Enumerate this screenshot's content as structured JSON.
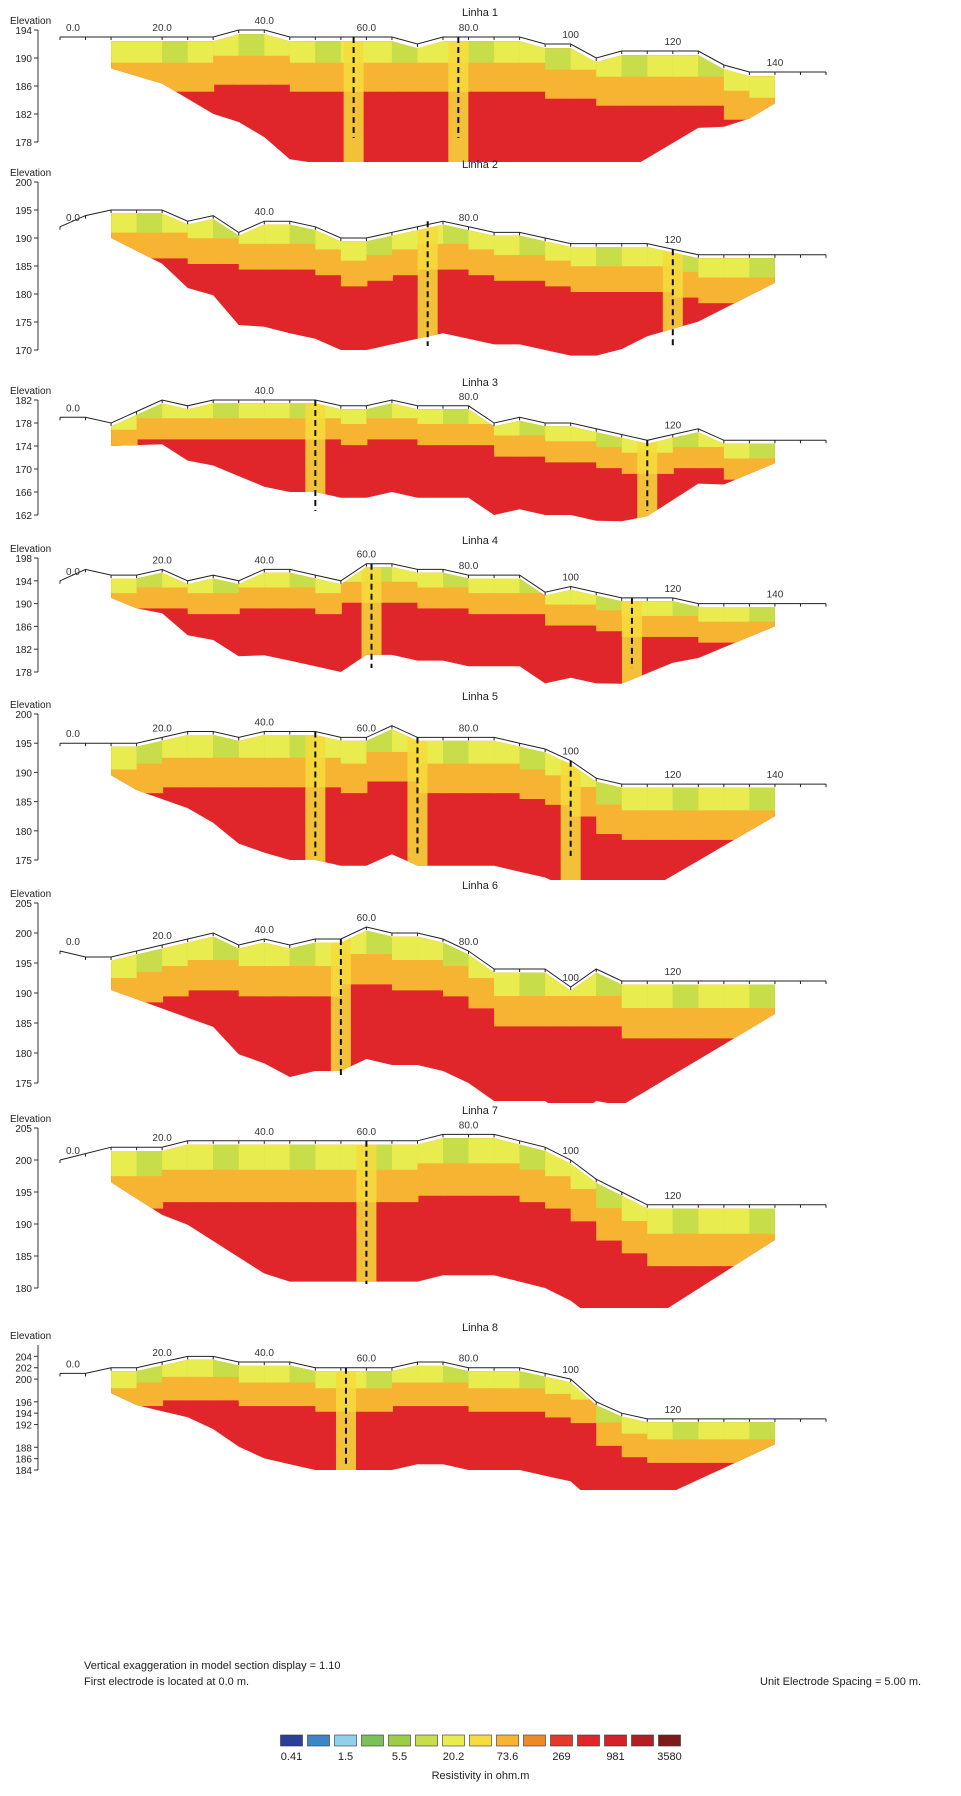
{
  "colors": {
    "scale": [
      "#2b3f9a",
      "#3d86c6",
      "#8fd0ea",
      "#7cc05a",
      "#9dcc49",
      "#c7de4a",
      "#e8ec4e",
      "#f6dc3c",
      "#f6b432",
      "#ee8a26",
      "#e4392a",
      "#e0262a",
      "#d8202a",
      "#b31e24",
      "#7e1a1c"
    ],
    "line": "#222222",
    "divider": "#111111"
  },
  "legend": {
    "labels": [
      "0.41",
      "1.5",
      "5.5",
      "20.2",
      "73.6",
      "269",
      "981",
      "3580"
    ],
    "title": "Resistivity in ohm.m"
  },
  "notes": {
    "exaggeration": "Vertical exaggeration in model section display = 1.10",
    "first_electrode": "First electrode is located at 0.0  m.",
    "spacing": "Unit Electrode Spacing = 5.00 m."
  },
  "chart_data": [
    {
      "type": "heatmap",
      "title": "Linha 1",
      "ylabel": "Elevation",
      "ylim": [
        178,
        194
      ],
      "yticks": [
        194,
        190,
        186,
        182,
        178
      ],
      "x_tick_labels": [
        "0.0",
        "20.0",
        "40.0",
        "60.0",
        "80.0",
        "100",
        "120",
        "140"
      ],
      "x_tick_values": [
        0,
        20,
        40,
        60,
        80,
        100,
        120,
        140
      ],
      "x_range": [
        0,
        150
      ],
      "dashed_markers_x": [
        57.5,
        78
      ],
      "surface_x": [
        0,
        5,
        10,
        20,
        25,
        30,
        35,
        40,
        45,
        50,
        55,
        60,
        65,
        70,
        75,
        80,
        85,
        90,
        95,
        100,
        105,
        110,
        115,
        120,
        125,
        130,
        135,
        140,
        145,
        150
      ],
      "surface_elevation": [
        193,
        193,
        193,
        193,
        193,
        193,
        194,
        194,
        193,
        193,
        193,
        193,
        193,
        192,
        193,
        193,
        193,
        193,
        192,
        192,
        190,
        191,
        191,
        191,
        191,
        189,
        188,
        188,
        188,
        188
      ]
    },
    {
      "type": "heatmap",
      "title": "Linha 2",
      "ylabel": "Elevation",
      "ylim": [
        170,
        200
      ],
      "yticks": [
        200,
        195,
        190,
        185,
        180,
        175,
        170
      ],
      "x_tick_labels": [
        "0.0",
        "40.0",
        "80.0",
        "120"
      ],
      "x_tick_values": [
        0,
        40,
        80,
        120
      ],
      "x_range": [
        0,
        150
      ],
      "dashed_markers_x": [
        72,
        120
      ],
      "surface_x": [
        0,
        5,
        10,
        15,
        20,
        25,
        30,
        35,
        40,
        45,
        50,
        55,
        60,
        65,
        70,
        75,
        80,
        85,
        90,
        95,
        100,
        105,
        110,
        115,
        120,
        125,
        130,
        135,
        140,
        145,
        150
      ],
      "surface_elevation": [
        192,
        194,
        195,
        195,
        195,
        193,
        194,
        191,
        193,
        193,
        192,
        190,
        190,
        191,
        192,
        193,
        192,
        191,
        191,
        190,
        189,
        189,
        189,
        189,
        188,
        187,
        187,
        187,
        187,
        187,
        187
      ]
    },
    {
      "type": "heatmap",
      "title": "Linha 3",
      "ylabel": "Elevation",
      "ylim": [
        162,
        182
      ],
      "yticks": [
        182,
        178,
        174,
        170,
        166,
        162
      ],
      "x_tick_labels": [
        "0.0",
        "40.0",
        "80.0",
        "120"
      ],
      "x_tick_values": [
        0,
        40,
        80,
        120
      ],
      "x_range": [
        0,
        150
      ],
      "dashed_markers_x": [
        50,
        115
      ],
      "surface_x": [
        0,
        5,
        10,
        15,
        20,
        25,
        30,
        35,
        40,
        45,
        50,
        55,
        60,
        65,
        70,
        75,
        80,
        85,
        90,
        95,
        100,
        105,
        110,
        115,
        120,
        125,
        130,
        135,
        140,
        145,
        150
      ],
      "surface_elevation": [
        179,
        179,
        178,
        180,
        182,
        181,
        182,
        182,
        182,
        182,
        182,
        181,
        181,
        182,
        181,
        181,
        181,
        178,
        179,
        178,
        178,
        177,
        176,
        175,
        176,
        177,
        175,
        175,
        175,
        175,
        175
      ]
    },
    {
      "type": "heatmap",
      "title": "Linha 4",
      "ylabel": "Elevation",
      "ylim": [
        178,
        198
      ],
      "yticks": [
        198,
        194,
        190,
        186,
        182,
        178
      ],
      "x_tick_labels": [
        "0.0",
        "20.0",
        "40.0",
        "60.0",
        "80.0",
        "100",
        "120",
        "140"
      ],
      "x_tick_values": [
        0,
        20,
        40,
        60,
        80,
        100,
        120,
        140
      ],
      "x_range": [
        0,
        150
      ],
      "dashed_markers_x": [
        61,
        112
      ],
      "surface_x": [
        0,
        5,
        10,
        15,
        20,
        25,
        30,
        35,
        40,
        45,
        50,
        55,
        60,
        65,
        70,
        75,
        80,
        85,
        90,
        95,
        100,
        105,
        110,
        115,
        120,
        125,
        130,
        135,
        140,
        145,
        150
      ],
      "surface_elevation": [
        194,
        196,
        195,
        195,
        196,
        194,
        195,
        194,
        196,
        196,
        195,
        194,
        197,
        197,
        196,
        196,
        195,
        195,
        195,
        192,
        193,
        192,
        191,
        191,
        191,
        190,
        190,
        190,
        190,
        190,
        190
      ]
    },
    {
      "type": "heatmap",
      "title": "Linha 5",
      "ylabel": "Elevation",
      "ylim": [
        175,
        200
      ],
      "yticks": [
        200,
        195,
        190,
        185,
        180,
        175
      ],
      "x_tick_labels": [
        "0.0",
        "20.0",
        "40.0",
        "60.0",
        "80.0",
        "100",
        "120",
        "140"
      ],
      "x_tick_values": [
        0,
        20,
        40,
        60,
        80,
        100,
        120,
        140
      ],
      "x_range": [
        0,
        150
      ],
      "dashed_markers_x": [
        50,
        70,
        100
      ],
      "surface_x": [
        0,
        5,
        10,
        15,
        20,
        25,
        30,
        35,
        40,
        45,
        50,
        55,
        60,
        65,
        70,
        75,
        80,
        85,
        90,
        95,
        100,
        105,
        110,
        115,
        120,
        125,
        130,
        135,
        140,
        145,
        150
      ],
      "surface_elevation": [
        195,
        195,
        195,
        195,
        196,
        197,
        197,
        196,
        197,
        197,
        197,
        196,
        196,
        198,
        196,
        196,
        196,
        196,
        195,
        194,
        192,
        189,
        188,
        188,
        188,
        188,
        188,
        188,
        188,
        188,
        188
      ]
    },
    {
      "type": "heatmap",
      "title": "Linha 6",
      "ylabel": "Elevation",
      "ylim": [
        175,
        205
      ],
      "yticks": [
        205,
        200,
        195,
        190,
        185,
        180,
        175
      ],
      "x_tick_labels": [
        "0.0",
        "20.0",
        "40.0",
        "60.0",
        "80.0",
        "100",
        "120"
      ],
      "x_tick_values": [
        0,
        20,
        40,
        60,
        80,
        100,
        120
      ],
      "x_range": [
        0,
        150
      ],
      "dashed_markers_x": [
        55
      ],
      "surface_x": [
        0,
        5,
        10,
        15,
        20,
        25,
        30,
        35,
        40,
        45,
        50,
        55,
        60,
        65,
        70,
        75,
        80,
        85,
        90,
        95,
        100,
        105,
        110,
        115,
        120,
        125,
        130,
        135,
        140,
        145,
        150
      ],
      "surface_elevation": [
        197,
        196,
        196,
        197,
        198,
        199,
        200,
        198,
        199,
        198,
        199,
        199,
        201,
        200,
        200,
        199,
        197,
        194,
        194,
        194,
        191,
        194,
        192,
        192,
        192,
        192,
        192,
        192,
        192,
        192,
        192
      ]
    },
    {
      "type": "heatmap",
      "title": "Linha 7",
      "ylabel": "Elevation",
      "ylim": [
        180,
        205
      ],
      "yticks": [
        205,
        200,
        195,
        190,
        185,
        180
      ],
      "x_tick_labels": [
        "0.0",
        "20.0",
        "40.0",
        "60.0",
        "80.0",
        "100",
        "120"
      ],
      "x_tick_values": [
        0,
        20,
        40,
        60,
        80,
        100,
        120
      ],
      "x_range": [
        0,
        150
      ],
      "dashed_markers_x": [
        60
      ],
      "surface_x": [
        0,
        5,
        10,
        15,
        20,
        25,
        30,
        35,
        40,
        45,
        50,
        55,
        60,
        65,
        70,
        75,
        80,
        85,
        90,
        95,
        100,
        105,
        110,
        115,
        120,
        125,
        130,
        135,
        140,
        145,
        150
      ],
      "surface_elevation": [
        200,
        201,
        202,
        202,
        202,
        203,
        203,
        203,
        203,
        203,
        203,
        203,
        203,
        203,
        203,
        204,
        204,
        204,
        203,
        202,
        200,
        197,
        195,
        193,
        193,
        193,
        193,
        193,
        193,
        193,
        193
      ]
    },
    {
      "type": "heatmap",
      "title": "Linha 8",
      "ylabel": "Elevation",
      "ylim": [
        184,
        206
      ],
      "yticks": [
        204,
        202,
        200,
        196,
        194,
        192,
        188,
        186,
        184
      ],
      "x_tick_labels": [
        "0.0",
        "20.0",
        "40.0",
        "60.0",
        "80.0",
        "100",
        "120"
      ],
      "x_tick_values": [
        0,
        20,
        40,
        60,
        80,
        100,
        120
      ],
      "x_range": [
        0,
        150
      ],
      "dashed_markers_x": [
        56
      ],
      "surface_x": [
        0,
        5,
        10,
        15,
        20,
        25,
        30,
        35,
        40,
        45,
        50,
        55,
        60,
        65,
        70,
        75,
        80,
        85,
        90,
        95,
        100,
        105,
        110,
        115,
        120,
        125,
        130,
        135,
        140,
        145,
        150
      ],
      "surface_elevation": [
        201,
        201,
        202,
        202,
        203,
        204,
        204,
        203,
        203,
        203,
        202,
        202,
        202,
        202,
        203,
        203,
        202,
        202,
        202,
        201,
        200,
        196,
        194,
        193,
        193,
        193,
        193,
        193,
        193,
        193,
        193
      ]
    }
  ]
}
